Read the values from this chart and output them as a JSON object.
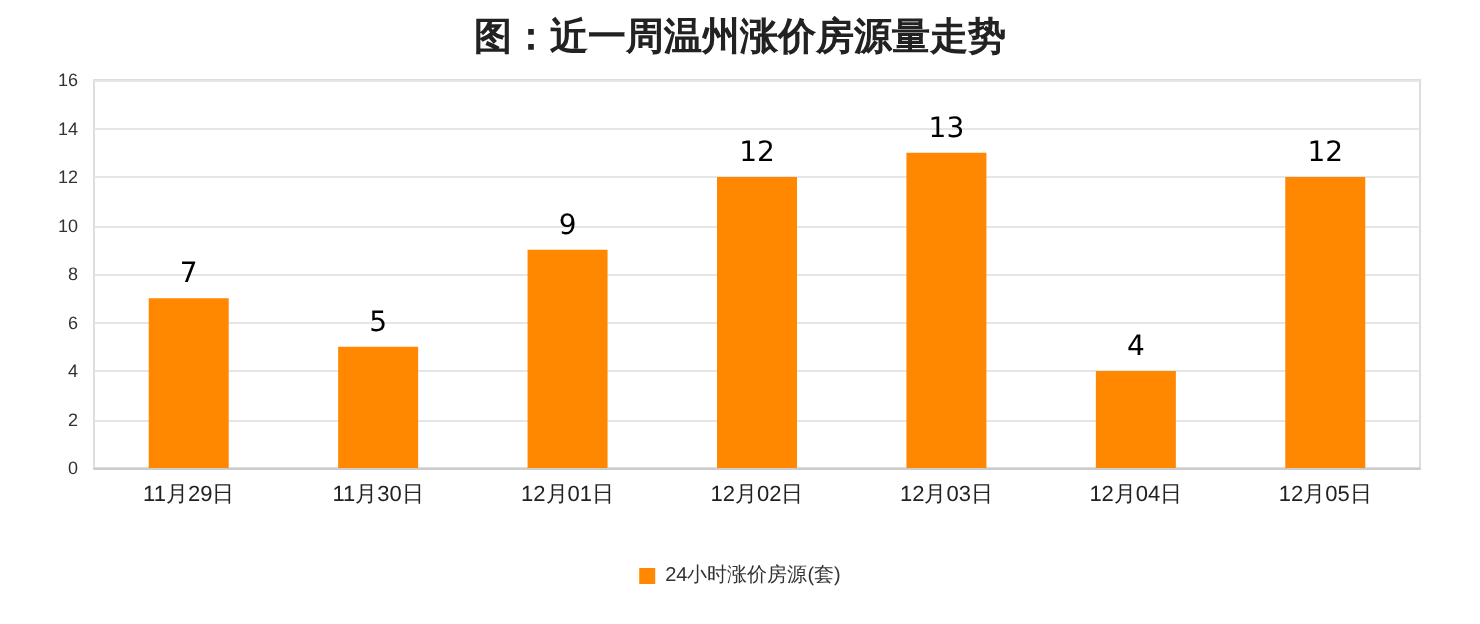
{
  "chart_data": {
    "type": "bar",
    "title": "图：近一周温州涨价房源量走势",
    "categories": [
      "11月29日",
      "11月30日",
      "12月01日",
      "12月02日",
      "12月03日",
      "12月04日",
      "12月05日"
    ],
    "series": [
      {
        "name": "24小时涨价房源(套)",
        "color": "#ff8800",
        "values": [
          7,
          5,
          9,
          12,
          13,
          4,
          12
        ]
      }
    ],
    "ylim": [
      0,
      16
    ],
    "yticks": [
      0,
      2,
      4,
      6,
      8,
      10,
      12,
      14,
      16
    ],
    "grid": "y",
    "legend": "bottom",
    "data_labels": true
  }
}
